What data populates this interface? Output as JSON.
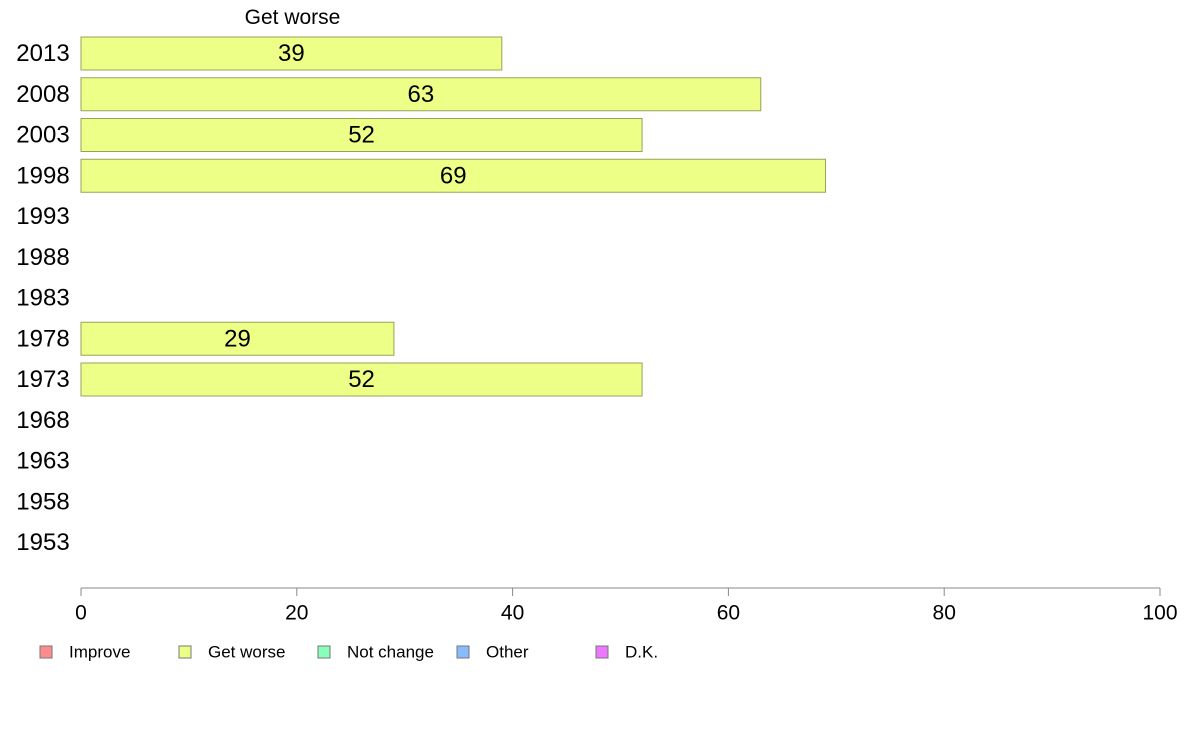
{
  "chart_data": {
    "type": "bar",
    "orientation": "horizontal",
    "title": "Get worse",
    "categories": [
      "2013",
      "2008",
      "2003",
      "1998",
      "1993",
      "1988",
      "1983",
      "1978",
      "1973",
      "1968",
      "1963",
      "1958",
      "1953"
    ],
    "series": [
      {
        "name": "Get worse",
        "color": "#eeff88",
        "values": [
          39,
          63,
          52,
          69,
          null,
          null,
          null,
          29,
          52,
          null,
          null,
          null,
          null
        ]
      }
    ],
    "xlim": [
      0,
      100
    ],
    "xticks": [
      0,
      20,
      40,
      60,
      80,
      100
    ],
    "xlabel": "",
    "ylabel": "",
    "grid": false,
    "legend_position": "bottom",
    "legend": [
      {
        "label": "Improve",
        "color": "#ff8c8c"
      },
      {
        "label": "Get worse",
        "color": "#eeff88"
      },
      {
        "label": "Not change",
        "color": "#88ffbb"
      },
      {
        "label": "Other",
        "color": "#88bbff"
      },
      {
        "label": "D.K.",
        "color": "#ee77ff"
      }
    ]
  }
}
